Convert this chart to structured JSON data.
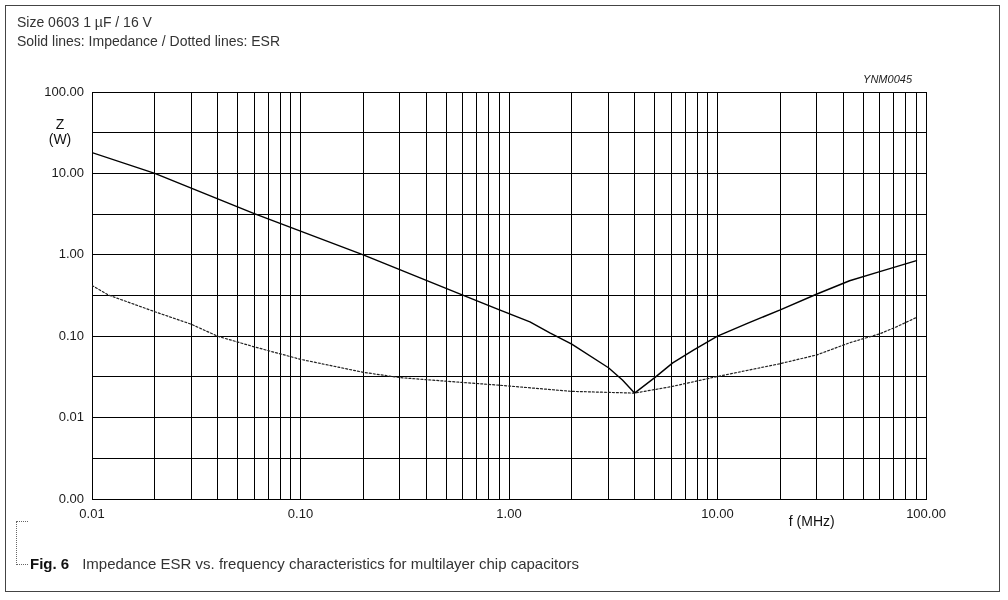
{
  "chart_data": {
    "type": "line",
    "title": "Size 0603 1 µF / 16 V",
    "subtitle": "Solid lines: Impedance / Dotted lines: ESR",
    "xlabel": "f (MHz)",
    "ylabel": "Z (W)",
    "annotations": [
      "YNM0045",
      "Fig. 6",
      "Impedance ESR vs. frequency characteristics for multilayer chip capacitors"
    ],
    "log": "xy",
    "grid": true,
    "xlim": [
      0.01,
      100
    ],
    "xticks": [
      0.01,
      {
        "value": 0.02,
        "label": null
      },
      {
        "value": 0.03,
        "label": null
      },
      {
        "value": 0.04,
        "label": null
      },
      {
        "value": 0.05,
        "label": null
      },
      {
        "value": 0.06,
        "label": null
      },
      {
        "value": 0.07,
        "label": null
      },
      {
        "value": 0.08,
        "label": null
      },
      {
        "value": 0.09,
        "label": null
      },
      {
        "value": 0.1,
        "label": "0.10"
      },
      {
        "value": 0.2,
        "label": null
      },
      {
        "value": 0.3,
        "label": null
      },
      {
        "value": 0.4,
        "label": null
      },
      {
        "value": 0.5,
        "label": null
      },
      {
        "value": 0.6,
        "label": null
      },
      {
        "value": 0.7,
        "label": null
      },
      {
        "value": 0.8,
        "label": null
      },
      {
        "value": 0.9,
        "label": null
      },
      {
        "value": 1,
        "label": "1.00"
      },
      {
        "value": 2,
        "label": null
      },
      {
        "value": 3,
        "label": null
      },
      {
        "value": 4,
        "label": null
      },
      {
        "value": 5,
        "label": null
      },
      {
        "value": 6,
        "label": null
      },
      {
        "value": 7,
        "label": null
      },
      {
        "value": 8,
        "label": null
      },
      {
        "value": 9,
        "label": null
      },
      {
        "value": 10,
        "label": "10.00"
      },
      {
        "value": 20,
        "label": null
      },
      {
        "value": 30,
        "label": null
      },
      {
        "value": 40,
        "label": null
      },
      {
        "value": 50,
        "label": null
      },
      {
        "value": 60,
        "label": null
      },
      {
        "value": 70,
        "label": null
      },
      {
        "value": 80,
        "label": null
      },
      {
        "value": 90,
        "label": null
      },
      {
        "value": 100,
        "label": "100.00"
      }
    ],
    "ylim": [
      0.001,
      100
    ],
    "yticks": [
      {
        "value": 0.001,
        "label": "0.00"
      },
      {
        "value": 0.00316,
        "label": null
      },
      0.01,
      {
        "value": 0.0316,
        "label": null
      },
      {
        "value": 0.1,
        "label": "0.10"
      },
      {
        "value": 0.316,
        "label": null
      },
      {
        "value": 1,
        "label": "1.00"
      },
      {
        "value": 3.16,
        "label": null
      },
      {
        "value": 10,
        "label": "10.00"
      },
      {
        "value": 31.6,
        "label": null
      },
      {
        "value": 100,
        "label": "100.00"
      }
    ],
    "series": [
      {
        "color": "#000000",
        "line_style": "solid",
        "x": [
          0.01,
          0.02,
          0.06,
          0.2,
          0.6,
          0.9,
          1.26,
          1.57,
          2,
          3,
          3.5,
          4,
          5,
          6.1,
          7.7,
          10,
          14,
          20,
          30,
          43,
          60,
          90
        ],
        "values": [
          18,
          10,
          3.2,
          1,
          0.32,
          0.21,
          0.15,
          0.11,
          0.08,
          0.041,
          0.029,
          0.02,
          0.031,
          0.047,
          0.068,
          0.1,
          0.145,
          0.21,
          0.33,
          0.48,
          0.62,
          0.85
        ]
      },
      {
        "color": "#222222",
        "line_style": "dotted",
        "x": [
          0.01,
          0.012,
          0.02,
          0.03,
          0.04,
          0.06,
          0.1,
          0.2,
          0.3,
          0.5,
          0.9,
          2,
          4,
          6,
          10,
          20,
          30,
          43,
          60,
          72,
          90
        ],
        "values": [
          0.42,
          0.32,
          0.2,
          0.14,
          0.1,
          0.074,
          0.052,
          0.036,
          0.031,
          0.028,
          0.025,
          0.021,
          0.02,
          0.024,
          0.032,
          0.046,
          0.059,
          0.083,
          0.107,
          0.13,
          0.17
        ]
      }
    ]
  }
}
